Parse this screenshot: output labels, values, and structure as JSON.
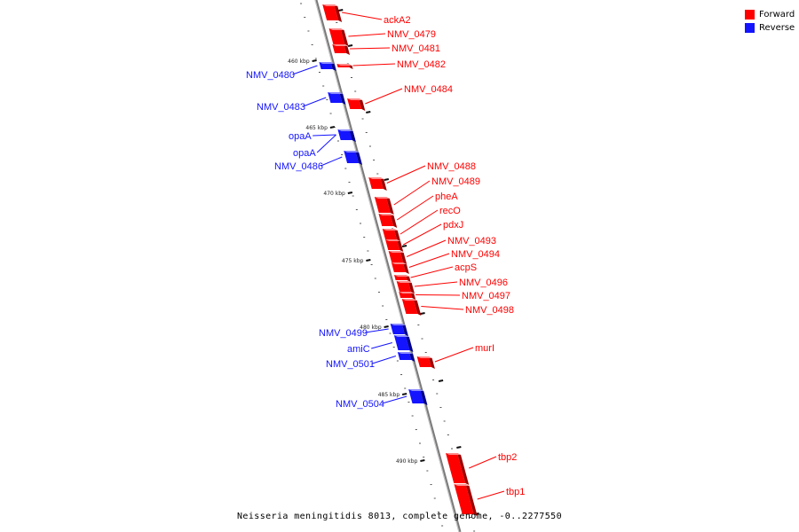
{
  "legend": {
    "forward_label": "Forward",
    "reverse_label": "Reverse",
    "forward_color": "#ff0000",
    "reverse_color": "#1414ff"
  },
  "caption": "Neisseria meningitidis 8013, complete genome, -0..2277550",
  "kbp_labels": [
    "460 kbp",
    "465 kbp",
    "470 kbp",
    "475 kbp",
    "480 kbp",
    "485 kbp",
    "490 kbp"
  ],
  "genes": [
    {
      "name": "ackA2",
      "strand": "forward"
    },
    {
      "name": "NMV_0479",
      "strand": "forward"
    },
    {
      "name": "NMV_0481",
      "strand": "forward"
    },
    {
      "name": "NMV_0482",
      "strand": "forward"
    },
    {
      "name": "NMV_0484",
      "strand": "forward"
    },
    {
      "name": "NMV_0480",
      "strand": "reverse"
    },
    {
      "name": "NMV_0483",
      "strand": "reverse"
    },
    {
      "name": "opaA",
      "strand": "reverse"
    },
    {
      "name": "opaA",
      "strand": "reverse"
    },
    {
      "name": "NMV_0486",
      "strand": "reverse"
    },
    {
      "name": "NMV_0488",
      "strand": "forward"
    },
    {
      "name": "NMV_0489",
      "strand": "forward"
    },
    {
      "name": "pheA",
      "strand": "forward"
    },
    {
      "name": "recO",
      "strand": "forward"
    },
    {
      "name": "pdxJ",
      "strand": "forward"
    },
    {
      "name": "NMV_0493",
      "strand": "forward"
    },
    {
      "name": "NMV_0494",
      "strand": "forward"
    },
    {
      "name": "acpS",
      "strand": "forward"
    },
    {
      "name": "NMV_0496",
      "strand": "forward"
    },
    {
      "name": "NMV_0497",
      "strand": "forward"
    },
    {
      "name": "NMV_0498",
      "strand": "forward"
    },
    {
      "name": "NMV_0499",
      "strand": "reverse"
    },
    {
      "name": "amiC",
      "strand": "reverse"
    },
    {
      "name": "NMV_0501",
      "strand": "reverse"
    },
    {
      "name": "murI",
      "strand": "forward"
    },
    {
      "name": "NMV_0504",
      "strand": "reverse"
    },
    {
      "name": "tbp2",
      "strand": "forward"
    },
    {
      "name": "tbp1",
      "strand": "forward"
    }
  ]
}
